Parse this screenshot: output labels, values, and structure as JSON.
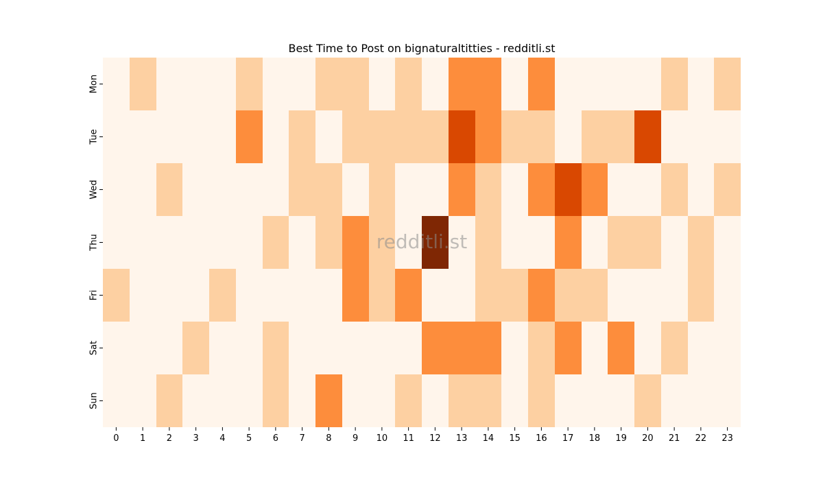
{
  "chart_data": {
    "type": "heatmap",
    "title": "Best Time to Post on bignaturaltitties - redditli.st",
    "xlabel": "",
    "ylabel": "",
    "x_categories": [
      "0",
      "1",
      "2",
      "3",
      "4",
      "5",
      "6",
      "7",
      "8",
      "9",
      "10",
      "11",
      "12",
      "13",
      "14",
      "15",
      "16",
      "17",
      "18",
      "19",
      "20",
      "21",
      "22",
      "23"
    ],
    "y_categories": [
      "Mon",
      "Tue",
      "Wed",
      "Thu",
      "Fri",
      "Sat",
      "Sun"
    ],
    "values": [
      [
        0,
        1,
        0,
        0,
        0,
        1,
        0,
        0,
        1,
        1,
        0,
        1,
        0,
        2,
        2,
        0,
        2,
        0,
        0,
        0,
        0,
        1,
        0,
        1
      ],
      [
        0,
        0,
        0,
        0,
        0,
        2,
        0,
        1,
        0,
        1,
        1,
        1,
        1,
        3,
        2,
        1,
        1,
        0,
        1,
        1,
        3,
        0,
        0,
        0
      ],
      [
        0,
        0,
        1,
        0,
        0,
        0,
        0,
        1,
        1,
        0,
        1,
        0,
        0,
        2,
        1,
        0,
        2,
        3,
        2,
        0,
        0,
        1,
        0,
        1
      ],
      [
        0,
        0,
        0,
        0,
        0,
        0,
        1,
        0,
        1,
        2,
        1,
        0,
        4,
        0,
        1,
        0,
        0,
        2,
        0,
        1,
        1,
        0,
        1,
        0
      ],
      [
        1,
        0,
        0,
        0,
        1,
        0,
        0,
        0,
        0,
        2,
        1,
        2,
        0,
        0,
        1,
        1,
        2,
        1,
        1,
        0,
        0,
        0,
        1,
        0
      ],
      [
        0,
        0,
        0,
        1,
        0,
        0,
        1,
        0,
        0,
        0,
        0,
        0,
        2,
        2,
        2,
        0,
        1,
        2,
        0,
        2,
        0,
        1,
        0,
        0
      ],
      [
        0,
        0,
        1,
        0,
        0,
        0,
        1,
        0,
        2,
        0,
        0,
        1,
        0,
        1,
        1,
        0,
        1,
        0,
        0,
        0,
        1,
        0,
        0,
        0
      ]
    ],
    "colormap": [
      "#fff5eb",
      "#fdd0a2",
      "#fd8d3c",
      "#d94801",
      "#7f2704"
    ],
    "grid": false,
    "legend": "none",
    "watermark": "redditli.st"
  }
}
